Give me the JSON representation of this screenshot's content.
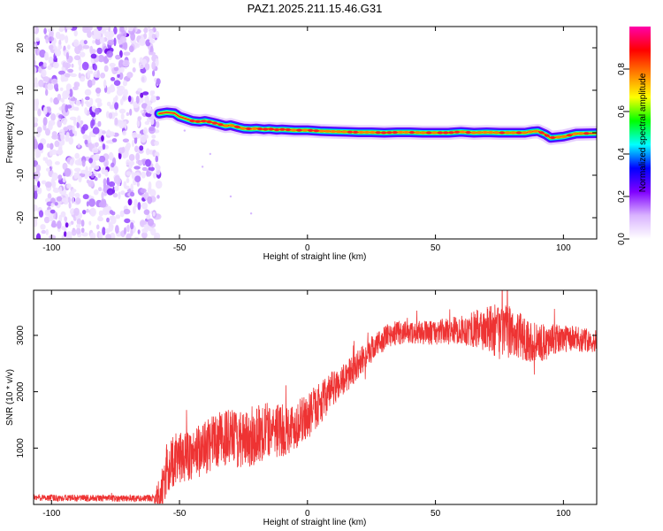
{
  "title": "PAZ1.2025.211.15.46.G31",
  "chart_data": [
    {
      "type": "heatmap",
      "xlabel": "Height of straight line (km)",
      "ylabel": "Frequency (Hz)",
      "xlim": [
        -107,
        113
      ],
      "ylim": [
        -25,
        25
      ],
      "xticks": [
        -100,
        -50,
        0,
        50,
        100
      ],
      "yticks": [
        -20,
        -10,
        0,
        10,
        20
      ],
      "noise_region_x": [
        -107,
        -58
      ],
      "ridge": {
        "x": [
          -58,
          -55,
          -52,
          -50,
          -47,
          -45,
          -42,
          -40,
          -37,
          -35,
          -32,
          -30,
          -27,
          -25,
          -22,
          -20,
          -17,
          -15,
          -12,
          -10,
          -5,
          0,
          5,
          10,
          15,
          20,
          25,
          30,
          35,
          40,
          45,
          50,
          55,
          60,
          65,
          70,
          75,
          80,
          85,
          88,
          90,
          93,
          95,
          100,
          105,
          113
        ],
        "freq": [
          4.5,
          4.8,
          4.6,
          3.8,
          3.2,
          2.8,
          2.6,
          2.8,
          2.4,
          2.1,
          1.6,
          1.8,
          1.3,
          1.0,
          0.9,
          1.0,
          0.8,
          0.9,
          0.7,
          0.8,
          0.6,
          0.6,
          0.4,
          0.3,
          0.2,
          0.1,
          0.1,
          0.0,
          0.1,
          0.1,
          0.0,
          0.0,
          0.0,
          0.2,
          0.0,
          0.1,
          0.0,
          0.0,
          0.0,
          0.3,
          0.4,
          -0.4,
          -1.2,
          -0.9,
          -0.2,
          -0.1
        ]
      },
      "colorbar": {
        "label": "Normalized spectral amplitude",
        "range": [
          0,
          1
        ],
        "ticks": [
          "0.0",
          "0.2",
          "0.4",
          "0.6",
          "0.8"
        ],
        "colors": [
          "#ffffff",
          "#d9b3ff",
          "#8000ff",
          "#0000ff",
          "#00ffff",
          "#00ff00",
          "#ffff00",
          "#ff8000",
          "#ff0000",
          "#ff00aa"
        ]
      }
    },
    {
      "type": "line",
      "xlabel": "Height of straight line (km)",
      "ylabel": "SNR (10 * v/v)",
      "xlim": [
        -107,
        113
      ],
      "ylim": [
        0,
        3800
      ],
      "xticks": [
        -100,
        -50,
        0,
        50,
        100
      ],
      "yticks": [
        1000,
        2000,
        3000
      ],
      "color": "#ee3333",
      "trend": {
        "x": [
          -107,
          -80,
          -60,
          -57,
          -55,
          -52,
          -50,
          -45,
          -40,
          -35,
          -30,
          -25,
          -20,
          -15,
          -10,
          -5,
          0,
          5,
          10,
          15,
          20,
          25,
          30,
          35,
          40,
          50,
          60,
          70,
          80,
          90,
          100,
          113
        ],
        "y": [
          120,
          110,
          110,
          150,
          600,
          800,
          820,
          900,
          1000,
          1150,
          1200,
          1100,
          1250,
          1350,
          1300,
          1400,
          1550,
          1800,
          2050,
          2250,
          2500,
          2750,
          2950,
          3050,
          3050,
          3050,
          3100,
          3100,
          3050,
          2850,
          2950,
          2900
        ]
      },
      "noise_amplitude": {
        "x": [
          -107,
          -60,
          -57,
          -50,
          -30,
          -20,
          0,
          20,
          40,
          60,
          75,
          90,
          100,
          113
        ],
        "amp": [
          60,
          60,
          500,
          450,
          500,
          550,
          400,
          250,
          200,
          250,
          500,
          350,
          250,
          200
        ]
      }
    }
  ]
}
